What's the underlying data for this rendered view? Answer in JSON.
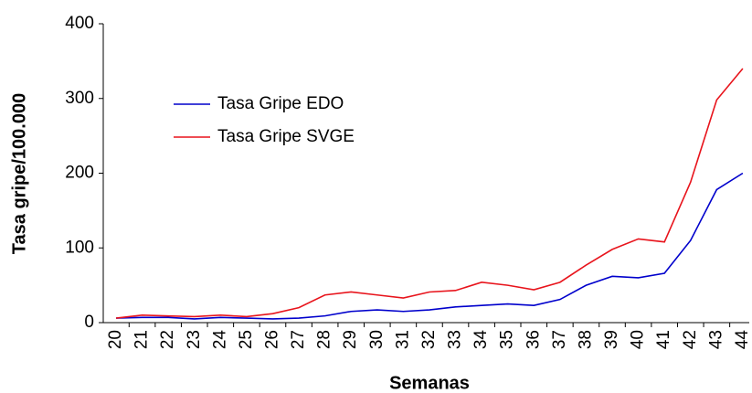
{
  "chart_data": {
    "type": "line",
    "y_label": "Tasa gripe/100.000",
    "x_label": "Semanas",
    "categories": [
      "20",
      "21",
      "22",
      "23",
      "24",
      "25",
      "26",
      "27",
      "28",
      "29",
      "30",
      "31",
      "32",
      "33",
      "34",
      "35",
      "36",
      "37",
      "38",
      "39",
      "40",
      "41",
      "42",
      "43",
      "44"
    ],
    "series": [
      {
        "name": "Tasa Gripe EDO",
        "color": "#0000cc",
        "values": [
          6,
          7,
          7,
          5,
          7,
          6,
          5,
          6,
          9,
          15,
          17,
          15,
          17,
          21,
          23,
          25,
          23,
          31,
          50,
          62,
          60,
          66,
          110,
          178,
          200
        ]
      },
      {
        "name": "Tasa Gripe SVGE",
        "color": "#e8141c",
        "values": [
          6,
          10,
          9,
          8,
          10,
          8,
          12,
          20,
          37,
          41,
          37,
          33,
          41,
          43,
          54,
          50,
          44,
          54,
          77,
          98,
          112,
          108,
          188,
          298,
          340
        ]
      }
    ],
    "ylim": [
      0,
      400
    ],
    "yticks": [
      0,
      100,
      200,
      300,
      400
    ],
    "grid": false,
    "legend": "upper-left"
  }
}
